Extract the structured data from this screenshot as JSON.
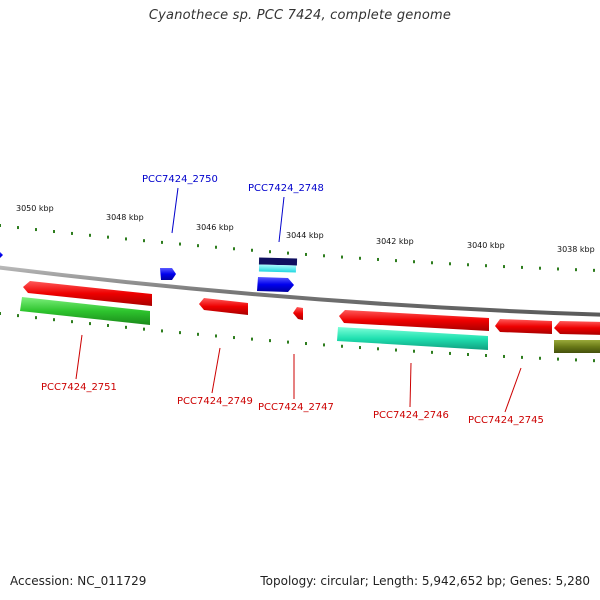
{
  "title": "Cyanothece sp. PCC 7424, complete genome",
  "footer": {
    "accession": "Accession: NC_011729",
    "summary": "Topology: circular; Length: 5,942,652 bp; Genes: 5,280"
  },
  "colors": {
    "backbone": "#8a8a8a",
    "tick": "#2e7d1e",
    "label_blue": "#0000cc",
    "label_red": "#cc0000"
  },
  "scale_labels": [
    "3050 kbp",
    "3048 kbp",
    "3046 kbp",
    "3044 kbp",
    "3042 kbp",
    "3040 kbp",
    "3038 kbp"
  ],
  "gene_labels": {
    "g2750": "PCC7424_2750",
    "g2748": "PCC7424_2748",
    "g2751": "PCC7424_2751",
    "g2749": "PCC7424_2749",
    "g2747": "PCC7424_2747",
    "g2746": "PCC7424_2746",
    "g2745": "PCC7424_2745"
  }
}
